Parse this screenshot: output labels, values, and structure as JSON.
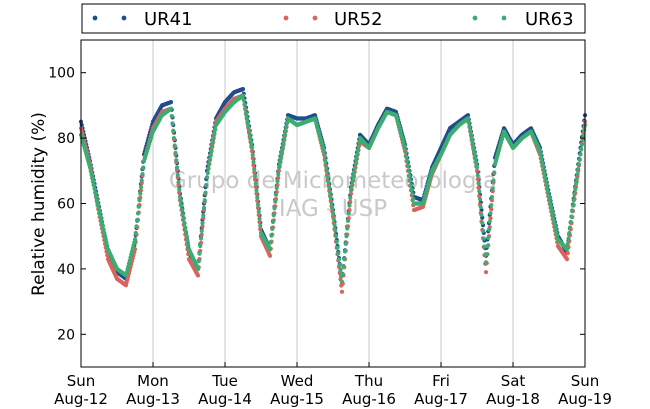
{
  "chart_data": {
    "type": "scatter",
    "title": "",
    "xlabel": "",
    "ylabel": "Relative humidity (%)",
    "ylim": [
      10,
      110
    ],
    "xlim": [
      "2012-08-12",
      "2012-08-19"
    ],
    "y_ticks": [
      20,
      40,
      60,
      80,
      100
    ],
    "x_ticks": [
      {
        "day": "Sun",
        "date": "Aug-12"
      },
      {
        "day": "Mon",
        "date": "Aug-13"
      },
      {
        "day": "Tue",
        "date": "Aug-14"
      },
      {
        "day": "Wed",
        "date": "Aug-15"
      },
      {
        "day": "Thu",
        "date": "Aug-16"
      },
      {
        "day": "Fri",
        "date": "Aug-17"
      },
      {
        "day": "Sat",
        "date": "Aug-18"
      },
      {
        "day": "Sun",
        "date": "Aug-19"
      }
    ],
    "grid": "vertical",
    "legend_position": "top",
    "watermark": [
      "Grupo de Micrometeorologia",
      "IAG - USP"
    ],
    "series": [
      {
        "name": "UR41",
        "color": "#1f4e8c",
        "points": [
          [
            "2012-08-12 00:00",
            85
          ],
          [
            "2012-08-12 03:00",
            73
          ],
          [
            "2012-08-12 06:00",
            59
          ],
          [
            "2012-08-12 09:00",
            45
          ],
          [
            "2012-08-12 12:00",
            39
          ],
          [
            "2012-08-12 15:00",
            37
          ],
          [
            "2012-08-12 18:00",
            48
          ],
          [
            "2012-08-12 21:00",
            75
          ],
          [
            "2012-08-13 00:00",
            85
          ],
          [
            "2012-08-13 03:00",
            90
          ],
          [
            "2012-08-13 06:00",
            91
          ],
          [
            "2012-08-13 09:00",
            63
          ],
          [
            "2012-08-13 12:00",
            45
          ],
          [
            "2012-08-13 15:00",
            40
          ],
          [
            "2012-08-13 18:00",
            70
          ],
          [
            "2012-08-13 21:00",
            86
          ],
          [
            "2012-08-14 00:00",
            91
          ],
          [
            "2012-08-14 03:00",
            94
          ],
          [
            "2012-08-14 06:00",
            95
          ],
          [
            "2012-08-14 09:00",
            78
          ],
          [
            "2012-08-14 12:00",
            52
          ],
          [
            "2012-08-14 15:00",
            46
          ],
          [
            "2012-08-14 18:00",
            72
          ],
          [
            "2012-08-14 21:00",
            87
          ],
          [
            "2012-08-15 00:00",
            86
          ],
          [
            "2012-08-15 03:00",
            86
          ],
          [
            "2012-08-15 06:00",
            87
          ],
          [
            "2012-08-15 09:00",
            77
          ],
          [
            "2012-08-15 12:00",
            58
          ],
          [
            "2012-08-15 15:00",
            36
          ],
          [
            "2012-08-15 18:00",
            65
          ],
          [
            "2012-08-15 21:00",
            81
          ],
          [
            "2012-08-16 00:00",
            78
          ],
          [
            "2012-08-16 03:00",
            84
          ],
          [
            "2012-08-16 06:00",
            89
          ],
          [
            "2012-08-16 09:00",
            88
          ],
          [
            "2012-08-16 12:00",
            78
          ],
          [
            "2012-08-16 15:00",
            62
          ],
          [
            "2012-08-16 18:00",
            61
          ],
          [
            "2012-08-16 21:00",
            71
          ],
          [
            "2012-08-17 00:00",
            77
          ],
          [
            "2012-08-17 03:00",
            83
          ],
          [
            "2012-08-17 06:00",
            85
          ],
          [
            "2012-08-17 09:00",
            87
          ],
          [
            "2012-08-17 12:00",
            72
          ],
          [
            "2012-08-17 15:00",
            44
          ],
          [
            "2012-08-17 18:00",
            74
          ],
          [
            "2012-08-17 21:00",
            83
          ],
          [
            "2012-08-18 00:00",
            78
          ],
          [
            "2012-08-18 03:00",
            81
          ],
          [
            "2012-08-18 06:00",
            83
          ],
          [
            "2012-08-18 09:00",
            77
          ],
          [
            "2012-08-18 12:00",
            63
          ],
          [
            "2012-08-18 15:00",
            50
          ],
          [
            "2012-08-18 18:00",
            45
          ],
          [
            "2012-08-18 21:00",
            67
          ],
          [
            "2012-08-19 00:00",
            87
          ]
        ]
      },
      {
        "name": "UR52",
        "color": "#d9635f",
        "points": [
          [
            "2012-08-12 00:00",
            83
          ],
          [
            "2012-08-12 03:00",
            72
          ],
          [
            "2012-08-12 06:00",
            57
          ],
          [
            "2012-08-12 09:00",
            43
          ],
          [
            "2012-08-12 12:00",
            37
          ],
          [
            "2012-08-12 15:00",
            35
          ],
          [
            "2012-08-12 18:00",
            46
          ],
          [
            "2012-08-12 21:00",
            73
          ],
          [
            "2012-08-13 00:00",
            83
          ],
          [
            "2012-08-13 03:00",
            88
          ],
          [
            "2012-08-13 06:00",
            89
          ],
          [
            "2012-08-13 09:00",
            61
          ],
          [
            "2012-08-13 12:00",
            43
          ],
          [
            "2012-08-13 15:00",
            38
          ],
          [
            "2012-08-13 18:00",
            68
          ],
          [
            "2012-08-13 21:00",
            85
          ],
          [
            "2012-08-14 00:00",
            89
          ],
          [
            "2012-08-14 03:00",
            92
          ],
          [
            "2012-08-14 06:00",
            93
          ],
          [
            "2012-08-14 09:00",
            76
          ],
          [
            "2012-08-14 12:00",
            50
          ],
          [
            "2012-08-14 15:00",
            44
          ],
          [
            "2012-08-14 18:00",
            70
          ],
          [
            "2012-08-14 21:00",
            86
          ],
          [
            "2012-08-15 00:00",
            84
          ],
          [
            "2012-08-15 03:00",
            85
          ],
          [
            "2012-08-15 06:00",
            86
          ],
          [
            "2012-08-15 09:00",
            75
          ],
          [
            "2012-08-15 12:00",
            56
          ],
          [
            "2012-08-15 15:00",
            33
          ],
          [
            "2012-08-15 18:00",
            63
          ],
          [
            "2012-08-15 21:00",
            79
          ],
          [
            "2012-08-16 00:00",
            77
          ],
          [
            "2012-08-16 03:00",
            83
          ],
          [
            "2012-08-16 06:00",
            88
          ],
          [
            "2012-08-16 09:00",
            87
          ],
          [
            "2012-08-16 12:00",
            76
          ],
          [
            "2012-08-16 15:00",
            58
          ],
          [
            "2012-08-16 18:00",
            59
          ],
          [
            "2012-08-16 21:00",
            69
          ],
          [
            "2012-08-17 00:00",
            75
          ],
          [
            "2012-08-17 03:00",
            81
          ],
          [
            "2012-08-17 06:00",
            84
          ],
          [
            "2012-08-17 09:00",
            86
          ],
          [
            "2012-08-17 12:00",
            70
          ],
          [
            "2012-08-17 15:00",
            39
          ],
          [
            "2012-08-17 18:00",
            72
          ],
          [
            "2012-08-17 21:00",
            82
          ],
          [
            "2012-08-18 00:00",
            77
          ],
          [
            "2012-08-18 03:00",
            80
          ],
          [
            "2012-08-18 06:00",
            82
          ],
          [
            "2012-08-18 09:00",
            75
          ],
          [
            "2012-08-18 12:00",
            61
          ],
          [
            "2012-08-18 15:00",
            47
          ],
          [
            "2012-08-18 18:00",
            43
          ],
          [
            "2012-08-18 21:00",
            65
          ],
          [
            "2012-08-19 00:00",
            85
          ]
        ]
      },
      {
        "name": "UR63",
        "color": "#3aae72",
        "points": [
          [
            "2012-08-12 00:00",
            81
          ],
          [
            "2012-08-12 03:00",
            71
          ],
          [
            "2012-08-12 06:00",
            58
          ],
          [
            "2012-08-12 09:00",
            46
          ],
          [
            "2012-08-12 12:00",
            40
          ],
          [
            "2012-08-12 15:00",
            38
          ],
          [
            "2012-08-12 18:00",
            49
          ],
          [
            "2012-08-12 21:00",
            73
          ],
          [
            "2012-08-13 00:00",
            82
          ],
          [
            "2012-08-13 03:00",
            87
          ],
          [
            "2012-08-13 06:00",
            89
          ],
          [
            "2012-08-13 09:00",
            62
          ],
          [
            "2012-08-13 12:00",
            46
          ],
          [
            "2012-08-13 15:00",
            40
          ],
          [
            "2012-08-13 18:00",
            68
          ],
          [
            "2012-08-13 21:00",
            84
          ],
          [
            "2012-08-14 00:00",
            88
          ],
          [
            "2012-08-14 03:00",
            91
          ],
          [
            "2012-08-14 06:00",
            93
          ],
          [
            "2012-08-14 09:00",
            77
          ],
          [
            "2012-08-14 12:00",
            51
          ],
          [
            "2012-08-14 15:00",
            46
          ],
          [
            "2012-08-14 18:00",
            71
          ],
          [
            "2012-08-14 21:00",
            86
          ],
          [
            "2012-08-15 00:00",
            84
          ],
          [
            "2012-08-15 03:00",
            85
          ],
          [
            "2012-08-15 06:00",
            86
          ],
          [
            "2012-08-15 09:00",
            76
          ],
          [
            "2012-08-15 12:00",
            57
          ],
          [
            "2012-08-15 15:00",
            36
          ],
          [
            "2012-08-15 18:00",
            64
          ],
          [
            "2012-08-15 21:00",
            80
          ],
          [
            "2012-08-16 00:00",
            77
          ],
          [
            "2012-08-16 03:00",
            83
          ],
          [
            "2012-08-16 06:00",
            88
          ],
          [
            "2012-08-16 09:00",
            87
          ],
          [
            "2012-08-16 12:00",
            77
          ],
          [
            "2012-08-16 15:00",
            60
          ],
          [
            "2012-08-16 18:00",
            60
          ],
          [
            "2012-08-16 21:00",
            70
          ],
          [
            "2012-08-17 00:00",
            75
          ],
          [
            "2012-08-17 03:00",
            81
          ],
          [
            "2012-08-17 06:00",
            84
          ],
          [
            "2012-08-17 09:00",
            86
          ],
          [
            "2012-08-17 12:00",
            71
          ],
          [
            "2012-08-17 15:00",
            42
          ],
          [
            "2012-08-17 18:00",
            72
          ],
          [
            "2012-08-17 21:00",
            82
          ],
          [
            "2012-08-18 00:00",
            77
          ],
          [
            "2012-08-18 03:00",
            80
          ],
          [
            "2012-08-18 06:00",
            82
          ],
          [
            "2012-08-18 09:00",
            76
          ],
          [
            "2012-08-18 12:00",
            62
          ],
          [
            "2012-08-18 15:00",
            49
          ],
          [
            "2012-08-18 18:00",
            46
          ],
          [
            "2012-08-18 21:00",
            66
          ],
          [
            "2012-08-19 00:00",
            84
          ]
        ]
      }
    ]
  }
}
